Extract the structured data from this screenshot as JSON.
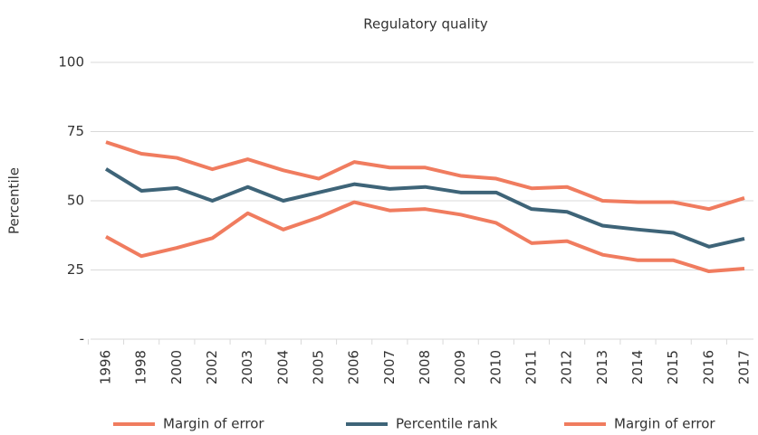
{
  "chart_data": {
    "type": "line",
    "title": "Regulatory quality",
    "y_label": "Percentile",
    "categories": [
      "1996",
      "1998",
      "2000",
      "2002",
      "2003",
      "2004",
      "2005",
      "2006",
      "2007",
      "2008",
      "2009",
      "2010",
      "2011",
      "2012",
      "2013",
      "2014",
      "2015",
      "2016",
      "2017"
    ],
    "series": [
      {
        "name": "Margin of error",
        "color": "#f07c5f",
        "values": [
          71.2,
          67,
          65.5,
          61.4,
          65,
          61,
          58,
          64,
          62,
          62,
          59,
          58,
          54.5,
          55,
          50,
          49.5,
          49.5,
          47,
          51
        ]
      },
      {
        "name": "Percentile rank",
        "color": "#3e6478",
        "values": [
          61.5,
          53.6,
          54.6,
          50,
          55,
          50,
          53,
          56,
          54.3,
          55,
          53,
          53,
          47,
          46,
          41,
          39.6,
          38.4,
          33.4,
          36.3
        ]
      },
      {
        "name": "Margin of error",
        "color": "#f07c5f",
        "values": [
          37,
          30,
          33,
          36.5,
          45.5,
          39.6,
          44,
          49.5,
          46.5,
          47,
          45,
          42,
          34.7,
          35.4,
          30.5,
          28.5,
          28.5,
          24.5,
          25.5
        ]
      }
    ],
    "ylim": [
      0,
      100
    ],
    "yticks": [
      {
        "value": 0,
        "label": "-"
      },
      25,
      50,
      75,
      100
    ],
    "grid": true
  }
}
